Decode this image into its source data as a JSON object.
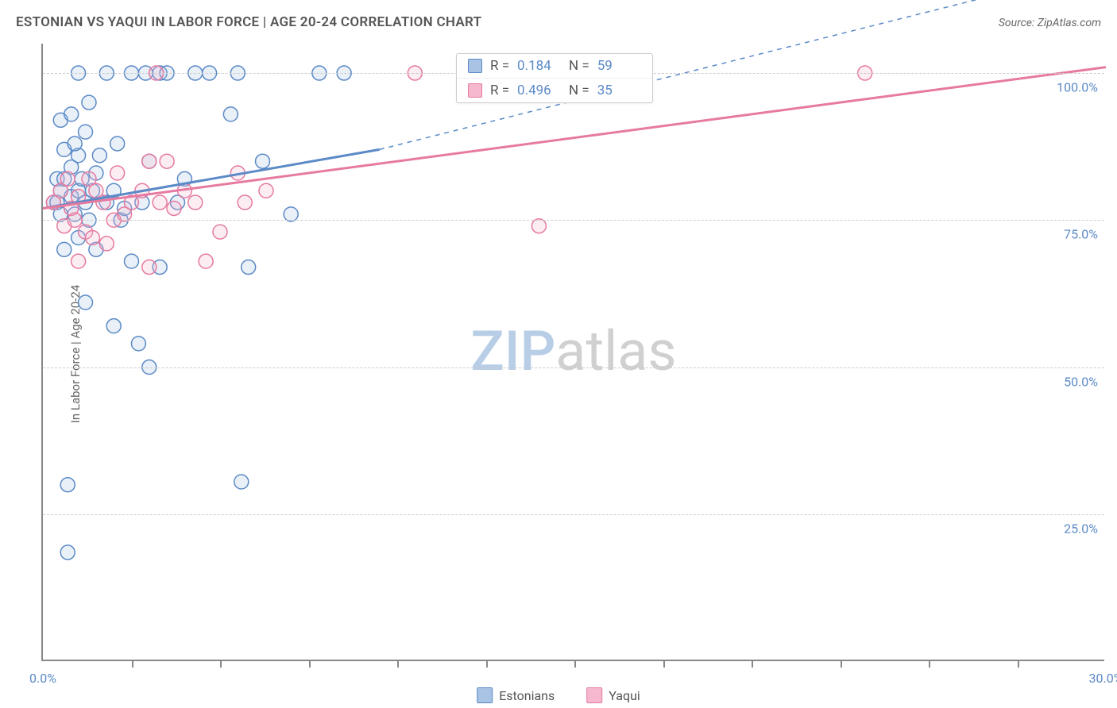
{
  "title": "ESTONIAN VS YAQUI IN LABOR FORCE | AGE 20-24 CORRELATION CHART",
  "source": "Source: ZipAtlas.com",
  "y_axis_label": "In Labor Force | Age 20-24",
  "watermark": {
    "part1": "ZIP",
    "part2": "atlas"
  },
  "chart": {
    "type": "scatter-correlation",
    "background_color": "#ffffff",
    "grid_color": "#cccccc",
    "axis_color": "#888888",
    "tick_label_color": "#5b8ac7",
    "x_range": [
      0,
      30
    ],
    "y_range": [
      0,
      105
    ],
    "x_ticks": [
      0.0,
      30.0
    ],
    "x_minor_ticks": [
      2.5,
      5.0,
      7.5,
      10.0,
      12.5,
      15.0,
      17.5,
      20.0,
      22.5,
      25.0,
      27.5
    ],
    "y_ticks": [
      25.0,
      50.0,
      75.0,
      100.0
    ],
    "marker_radius": 9,
    "marker_stroke_width": 1.5,
    "marker_fill_opacity": 0.25,
    "trend_line_width": 3
  },
  "series": [
    {
      "id": "estonians",
      "label": "Estonians",
      "color": "#5b8ac7",
      "fill_color": "#a8c3e3",
      "R": "0.184",
      "N": "59",
      "trend": {
        "x1": 0.0,
        "y1": 77.0,
        "x2": 9.5,
        "y2": 87.0,
        "x2_dash": 30.0,
        "y2_dash": 118.0
      },
      "points": [
        [
          0.3,
          78
        ],
        [
          0.4,
          78
        ],
        [
          0.5,
          92
        ],
        [
          0.5,
          76
        ],
        [
          0.6,
          87
        ],
        [
          0.6,
          70
        ],
        [
          0.7,
          18.5
        ],
        [
          0.7,
          30
        ],
        [
          0.8,
          79
        ],
        [
          0.8,
          84
        ],
        [
          0.8,
          93
        ],
        [
          0.9,
          76
        ],
        [
          1.0,
          72
        ],
        [
          1.0,
          80
        ],
        [
          1.0,
          86
        ],
        [
          1.0,
          100
        ],
        [
          1.2,
          61
        ],
        [
          1.2,
          78
        ],
        [
          1.2,
          90
        ],
        [
          1.3,
          75
        ],
        [
          1.3,
          95
        ],
        [
          1.5,
          70
        ],
        [
          1.5,
          83
        ],
        [
          1.6,
          86
        ],
        [
          1.8,
          100
        ],
        [
          1.8,
          78
        ],
        [
          2.0,
          57
        ],
        [
          2.0,
          80
        ],
        [
          2.1,
          88
        ],
        [
          2.2,
          75
        ],
        [
          2.3,
          77
        ],
        [
          2.5,
          68
        ],
        [
          2.5,
          100
        ],
        [
          2.7,
          54
        ],
        [
          2.8,
          78
        ],
        [
          2.9,
          100
        ],
        [
          3.0,
          85
        ],
        [
          3.0,
          50
        ],
        [
          3.3,
          100
        ],
        [
          3.3,
          67
        ],
        [
          3.5,
          100
        ],
        [
          3.8,
          78
        ],
        [
          4.0,
          82
        ],
        [
          4.3,
          100
        ],
        [
          4.7,
          100
        ],
        [
          5.3,
          93
        ],
        [
          5.5,
          100
        ],
        [
          5.6,
          30.5
        ],
        [
          5.8,
          67
        ],
        [
          6.2,
          85
        ],
        [
          7.0,
          76
        ],
        [
          7.8,
          100
        ],
        [
          8.5,
          100
        ],
        [
          0.4,
          82
        ],
        [
          0.5,
          80
        ],
        [
          0.6,
          82
        ],
        [
          0.9,
          88
        ],
        [
          1.1,
          82
        ],
        [
          1.4,
          80
        ]
      ]
    },
    {
      "id": "yaqui",
      "label": "Yaqui",
      "color": "#e67aa0",
      "fill_color": "#f5b8ce",
      "R": "0.496",
      "N": "35",
      "trend": {
        "x1": 0.0,
        "y1": 77.0,
        "x2": 30.0,
        "y2": 101.0
      },
      "points": [
        [
          0.3,
          78
        ],
        [
          0.5,
          80
        ],
        [
          0.6,
          74
        ],
        [
          0.7,
          82
        ],
        [
          0.8,
          77
        ],
        [
          0.9,
          75
        ],
        [
          1.0,
          68
        ],
        [
          1.0,
          79
        ],
        [
          1.2,
          73
        ],
        [
          1.3,
          82
        ],
        [
          1.4,
          72
        ],
        [
          1.5,
          80
        ],
        [
          1.7,
          78
        ],
        [
          1.8,
          71
        ],
        [
          2.0,
          75
        ],
        [
          2.1,
          83
        ],
        [
          2.3,
          76
        ],
        [
          2.5,
          78
        ],
        [
          2.8,
          80
        ],
        [
          3.0,
          67
        ],
        [
          3.2,
          100
        ],
        [
          3.3,
          78
        ],
        [
          3.5,
          85
        ],
        [
          3.7,
          77
        ],
        [
          4.0,
          80
        ],
        [
          4.3,
          78
        ],
        [
          4.6,
          68
        ],
        [
          5.0,
          73
        ],
        [
          5.5,
          83
        ],
        [
          5.7,
          78
        ],
        [
          6.3,
          80
        ],
        [
          10.5,
          100
        ],
        [
          14.0,
          74
        ],
        [
          23.2,
          100
        ],
        [
          3.0,
          85
        ]
      ]
    }
  ],
  "stat_box": {
    "R_label": "R  =",
    "N_label": "N  ="
  },
  "legend": {
    "items": [
      {
        "label": "Estonians",
        "fill": "#a8c3e3",
        "stroke": "#5b8ac7"
      },
      {
        "label": "Yaqui",
        "fill": "#f5b8ce",
        "stroke": "#e67aa0"
      }
    ]
  }
}
